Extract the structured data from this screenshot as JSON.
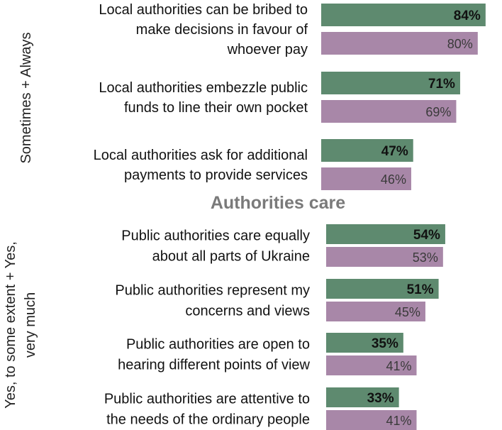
{
  "colors": {
    "series_a": "#5e8a6f",
    "series_b": "#a887a8"
  },
  "chart_data": [
    {
      "type": "bar",
      "orientation": "horizontal",
      "group_label": "Sometimes + Always",
      "title": "",
      "categories": [
        [
          "Local authorities can be bribed to",
          "make decisions in favour of",
          "whoever pay"
        ],
        [
          "Local authorities embezzle public",
          "funds to line their own pocket"
        ],
        [
          "Local authorities ask for additional",
          "payments to provide services"
        ]
      ],
      "series": [
        {
          "values": [
            84,
            71,
            47
          ],
          "labels": [
            "84%",
            "71%",
            "47%"
          ]
        },
        {
          "values": [
            80,
            69,
            46
          ],
          "labels": [
            "80%",
            "69%",
            "46%"
          ]
        }
      ],
      "xlim": [
        0,
        100
      ]
    },
    {
      "type": "bar",
      "orientation": "horizontal",
      "group_label": [
        "Yes, to some extent + Yes,",
        "very much"
      ],
      "title": "Authorities care",
      "categories": [
        [
          "Public authorities care equally",
          "about all parts of Ukraine"
        ],
        [
          "Public authorities represent my",
          "concerns and views"
        ],
        [
          "Public authorities are open to",
          "hearing different points of view"
        ],
        [
          "Public authorities are attentive to",
          "the needs of the ordinary people"
        ]
      ],
      "series": [
        {
          "values": [
            54,
            51,
            35,
            33
          ],
          "labels": [
            "54%",
            "51%",
            "35%",
            "33%"
          ]
        },
        {
          "values": [
            53,
            45,
            41,
            41
          ],
          "labels": [
            "53%",
            "45%",
            "41%",
            "41%"
          ]
        }
      ],
      "xlim": [
        0,
        100
      ]
    }
  ]
}
